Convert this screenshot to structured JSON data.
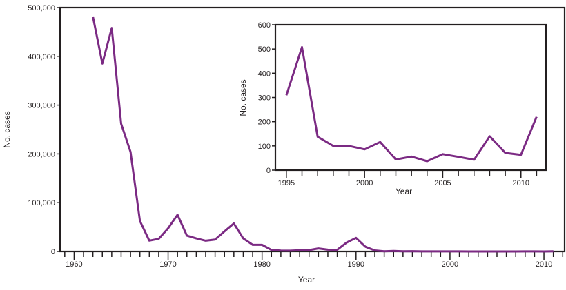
{
  "chart_data": [
    {
      "type": "line",
      "xlabel": "Year",
      "ylabel": "No. cases",
      "xlim": [
        1958.5,
        2012.2
      ],
      "ylim": [
        0,
        500000
      ],
      "xticks": [
        1960,
        1970,
        1980,
        1990,
        2000,
        2010
      ],
      "yticks": [
        0,
        100000,
        200000,
        300000,
        400000,
        500000
      ],
      "ytick_labels": [
        "0",
        "100,000",
        "200,000",
        "300,000",
        "400,000",
        "500,000"
      ],
      "grid": false,
      "color": "#7b2a83",
      "x": [
        1962,
        1963,
        1964,
        1965,
        1966,
        1967,
        1968,
        1969,
        1970,
        1971,
        1972,
        1973,
        1974,
        1975,
        1976,
        1977,
        1978,
        1979,
        1980,
        1981,
        1982,
        1983,
        1984,
        1985,
        1986,
        1987,
        1988,
        1989,
        1990,
        1991,
        1992,
        1993,
        1994,
        1995,
        1996,
        1997,
        1998,
        1999,
        2000,
        2001,
        2002,
        2003,
        2004,
        2005,
        2006,
        2007,
        2008,
        2009,
        2010,
        2011
      ],
      "y": [
        481530,
        385156,
        458083,
        261904,
        204136,
        62705,
        22231,
        25826,
        47351,
        75290,
        32275,
        26690,
        22094,
        24374,
        41126,
        57345,
        26871,
        13597,
        13506,
        3124,
        1714,
        1497,
        2587,
        2822,
        6282,
        3655,
        3396,
        18193,
        27786,
        9643,
        2126,
        312,
        963,
        309,
        508,
        138,
        100,
        100,
        86,
        116,
        44,
        56,
        37,
        66,
        55,
        43,
        140,
        71,
        63,
        220
      ]
    },
    {
      "type": "line",
      "xlabel": "Year",
      "ylabel": "No. cases",
      "xlim": [
        1994.3,
        2011.6
      ],
      "ylim": [
        0,
        600
      ],
      "xticks": [
        1995,
        2000,
        2005,
        2010
      ],
      "yticks": [
        0,
        100,
        200,
        300,
        400,
        500,
        600
      ],
      "ytick_labels": [
        "0",
        "100",
        "200",
        "300",
        "400",
        "500",
        "600"
      ],
      "grid": false,
      "color": "#7b2a83",
      "x": [
        1995,
        1996,
        1997,
        1998,
        1999,
        2000,
        2001,
        2002,
        2003,
        2004,
        2005,
        2006,
        2007,
        2008,
        2009,
        2010,
        2011
      ],
      "y": [
        309,
        508,
        138,
        100,
        100,
        86,
        116,
        44,
        56,
        37,
        66,
        55,
        43,
        140,
        71,
        63,
        220
      ]
    }
  ]
}
